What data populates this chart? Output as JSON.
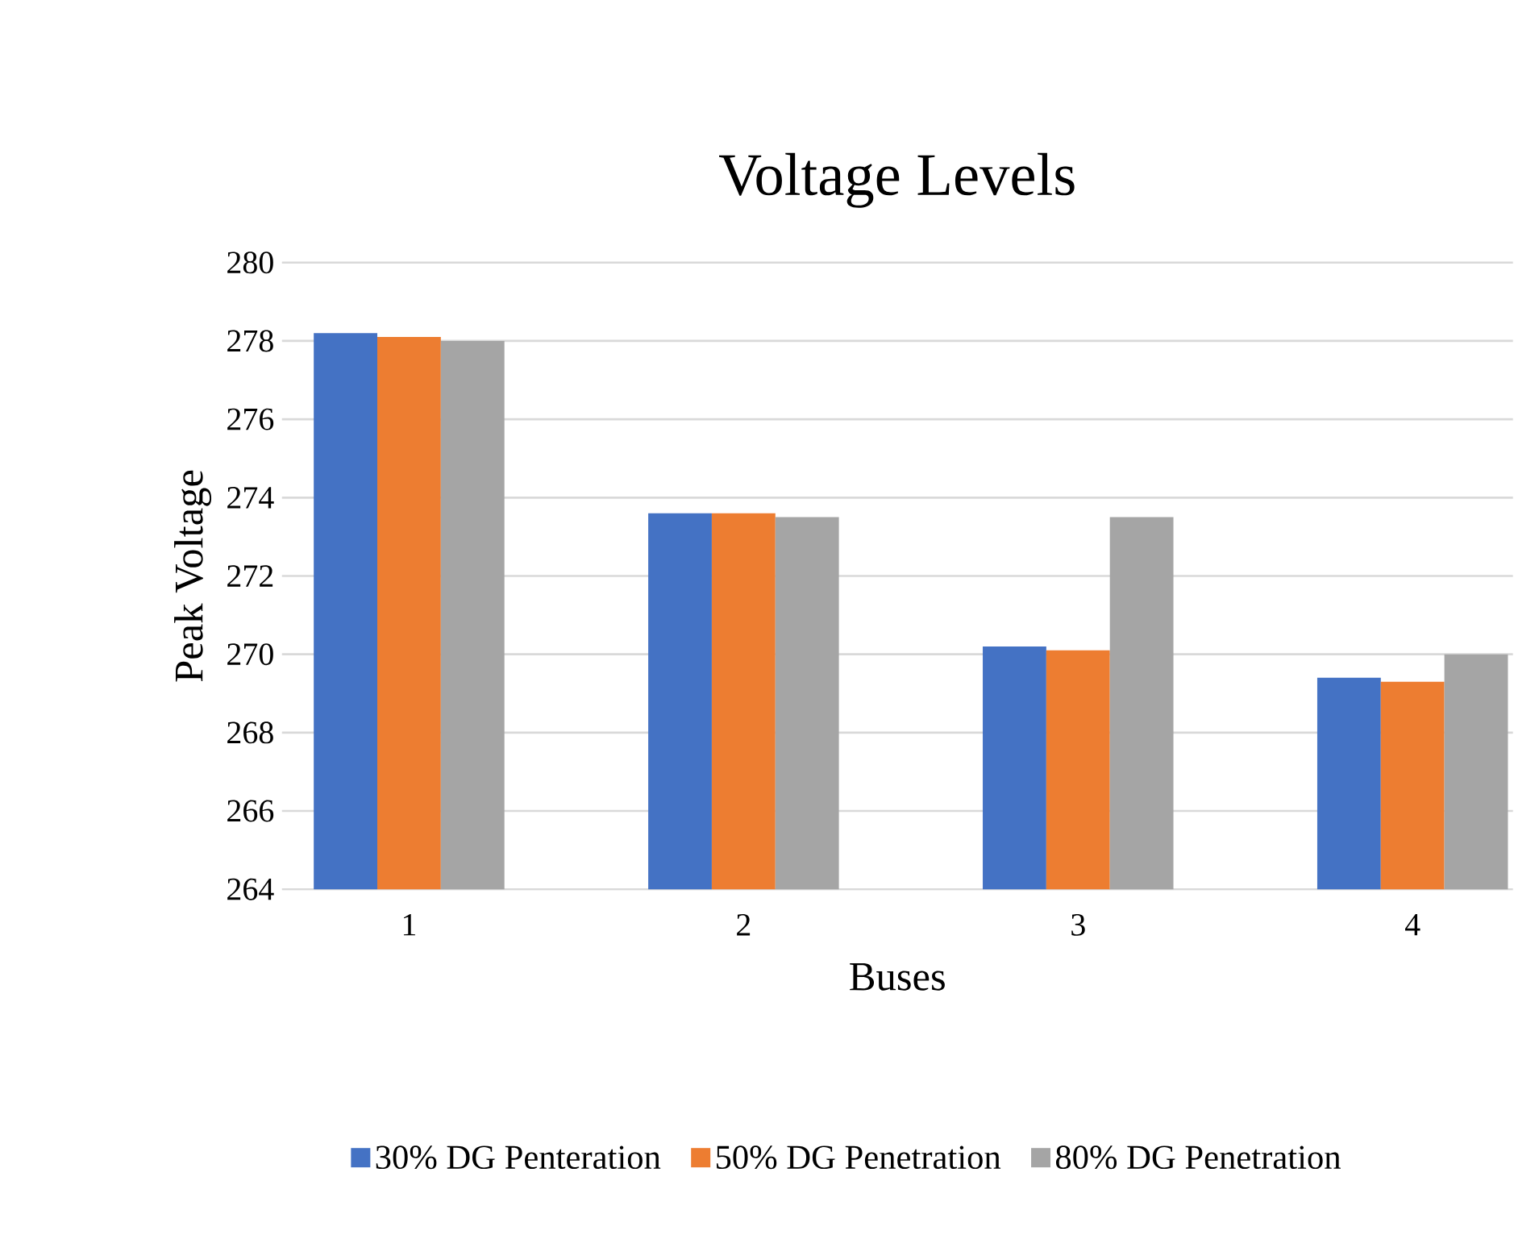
{
  "chart_data": {
    "type": "bar",
    "title": "Voltage Levels",
    "xlabel": "Buses",
    "ylabel": "Peak Voltage",
    "categories": [
      "1",
      "2",
      "3",
      "4"
    ],
    "series": [
      {
        "name": "30% DG Penteration",
        "color": "#4472c4",
        "values": [
          278.2,
          273.6,
          270.2,
          269.4
        ]
      },
      {
        "name": "50% DG Penetration",
        "color": "#ed7d31",
        "values": [
          278.1,
          273.6,
          270.1,
          269.3
        ]
      },
      {
        "name": "80% DG Penetration",
        "color": "#a5a5a5",
        "values": [
          278.0,
          273.5,
          273.5,
          270.0
        ]
      }
    ],
    "ylim": [
      264,
      280
    ],
    "yticks": [
      264,
      266,
      268,
      270,
      272,
      274,
      276,
      278,
      280
    ],
    "grid": "y",
    "legend": "bottom"
  }
}
